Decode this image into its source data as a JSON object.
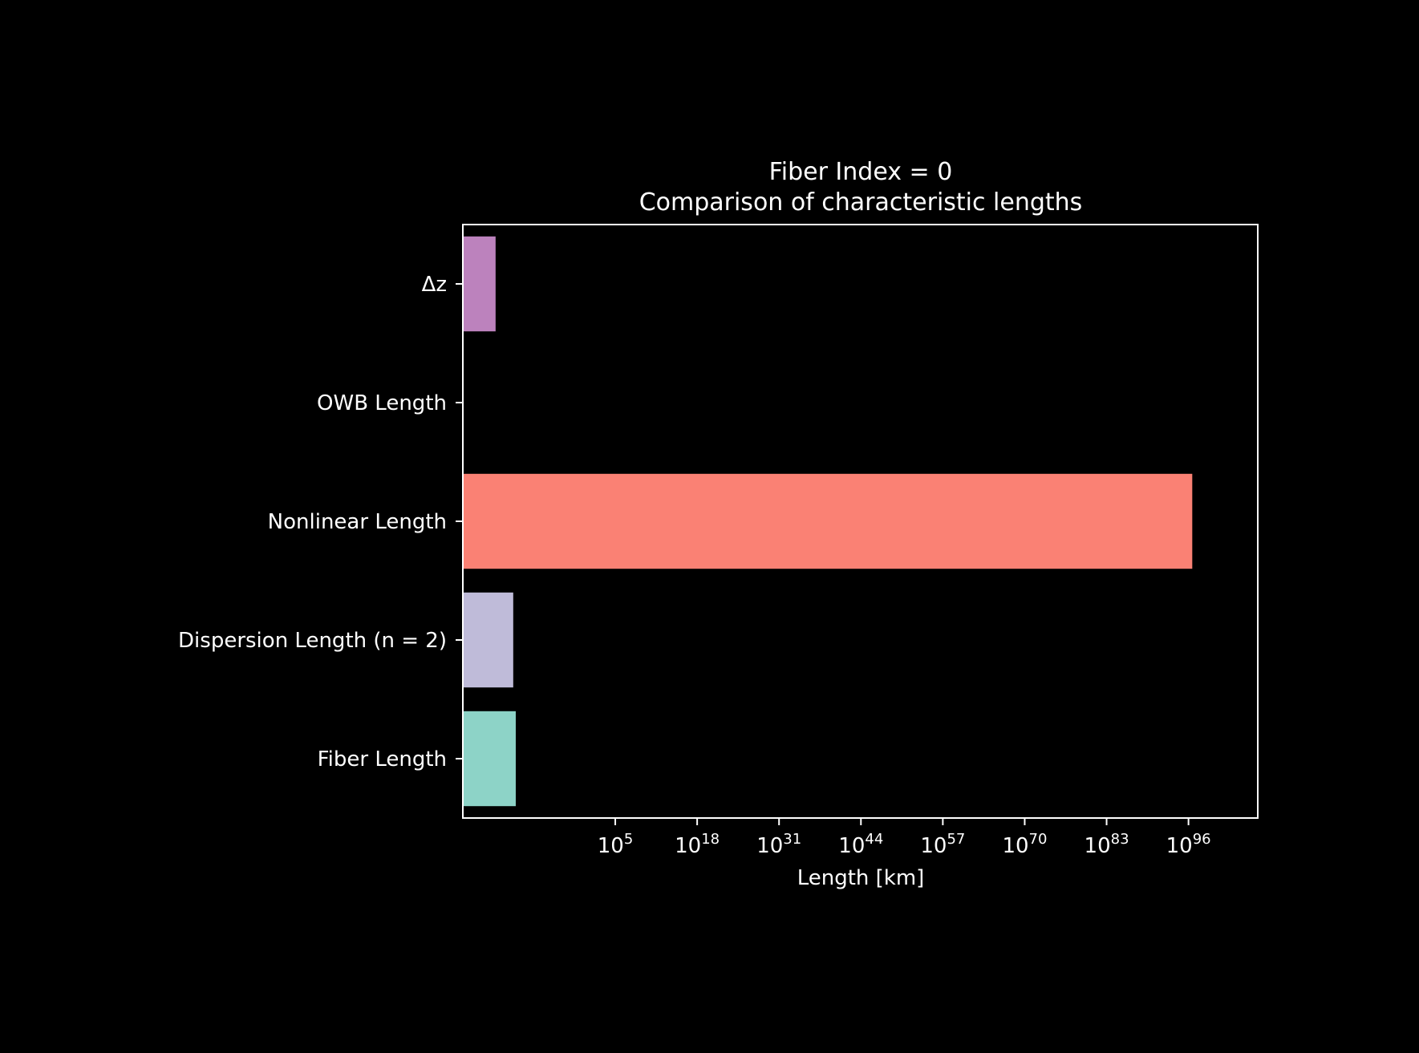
{
  "chart_data": {
    "type": "bar",
    "orientation": "horizontal",
    "title": "Fiber Index = 0",
    "subtitle": "Comparison of characteristic lengths",
    "xlabel": "Length [km]",
    "ylabel": "",
    "x_scale": "log",
    "x_range_exp": [
      -19.2,
      107
    ],
    "x_ticks": [
      {
        "base": "10",
        "exp": "5",
        "value_exp": 5
      },
      {
        "base": "10",
        "exp": "18",
        "value_exp": 18
      },
      {
        "base": "10",
        "exp": "31",
        "value_exp": 31
      },
      {
        "base": "10",
        "exp": "44",
        "value_exp": 44
      },
      {
        "base": "10",
        "exp": "57",
        "value_exp": 57
      },
      {
        "base": "10",
        "exp": "70",
        "value_exp": 70
      },
      {
        "base": "10",
        "exp": "83",
        "value_exp": 83
      },
      {
        "base": "10",
        "exp": "96",
        "value_exp": 96
      }
    ],
    "categories": [
      "Δz",
      "OWB Length",
      "Nonlinear Length",
      "Dispersion Length (n = 2)",
      "Fiber Length"
    ],
    "values_log10": [
      -14,
      null,
      96.6,
      -11.2,
      -10.8
    ],
    "colors": [
      "#bc82bd",
      "#ffffb3",
      "#fa8174",
      "#bfbbd9",
      "#8dd3c7"
    ],
    "grid": false,
    "background": "#000000",
    "foreground": "#ffffff"
  }
}
